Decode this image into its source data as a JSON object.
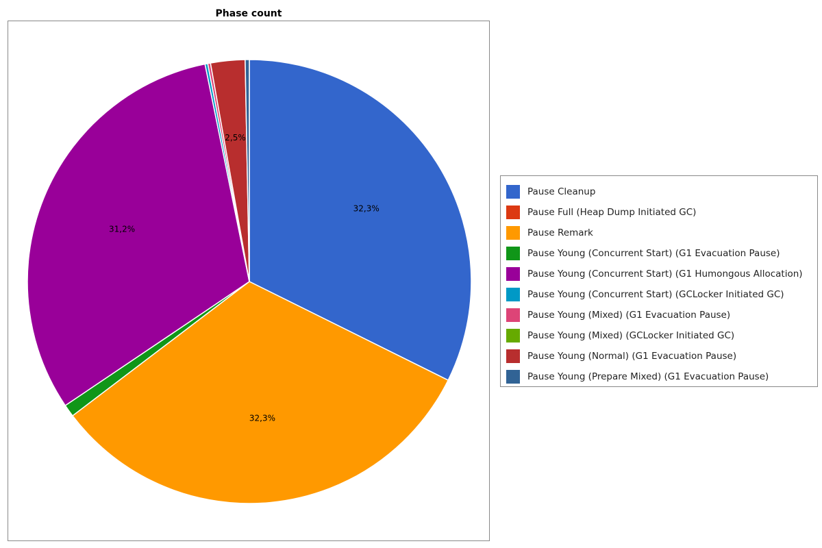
{
  "chart_data": {
    "type": "pie",
    "title": "Phase count",
    "legend_position": "right",
    "start_angle": "top, clockwise",
    "series": [
      {
        "name": "Pause Cleanup",
        "value": 32.3,
        "label": "32,3%",
        "color": "#3366cc"
      },
      {
        "name": "Pause Full (Heap Dump Initiated GC)",
        "value": 0.0,
        "label": "",
        "color": "#dc3912"
      },
      {
        "name": "Pause Remark",
        "value": 32.3,
        "label": "32,3%",
        "color": "#ff9900"
      },
      {
        "name": "Pause Young (Concurrent Start) (G1 Evacuation Pause)",
        "value": 0.9,
        "label": "",
        "color": "#109618"
      },
      {
        "name": "Pause Young (Concurrent Start) (G1 Humongous Allocation)",
        "value": 31.2,
        "label": "31,2%",
        "color": "#990099"
      },
      {
        "name": "Pause Young (Concurrent Start) (GCLocker Initiated GC)",
        "value": 0.2,
        "label": "",
        "color": "#0099c6"
      },
      {
        "name": "Pause Young (Mixed) (G1 Evacuation Pause)",
        "value": 0.2,
        "label": "",
        "color": "#dd4477"
      },
      {
        "name": "Pause Young (Mixed) (GCLocker Initiated GC)",
        "value": 0.0,
        "label": "",
        "color": "#66aa00"
      },
      {
        "name": "Pause Young (Normal) (G1 Evacuation Pause)",
        "value": 2.5,
        "label": "2,5%",
        "color": "#b82e2e"
      },
      {
        "name": "Pause Young (Prepare Mixed) (G1 Evacuation Pause)",
        "value": 0.3,
        "label": "",
        "color": "#316395"
      }
    ]
  }
}
